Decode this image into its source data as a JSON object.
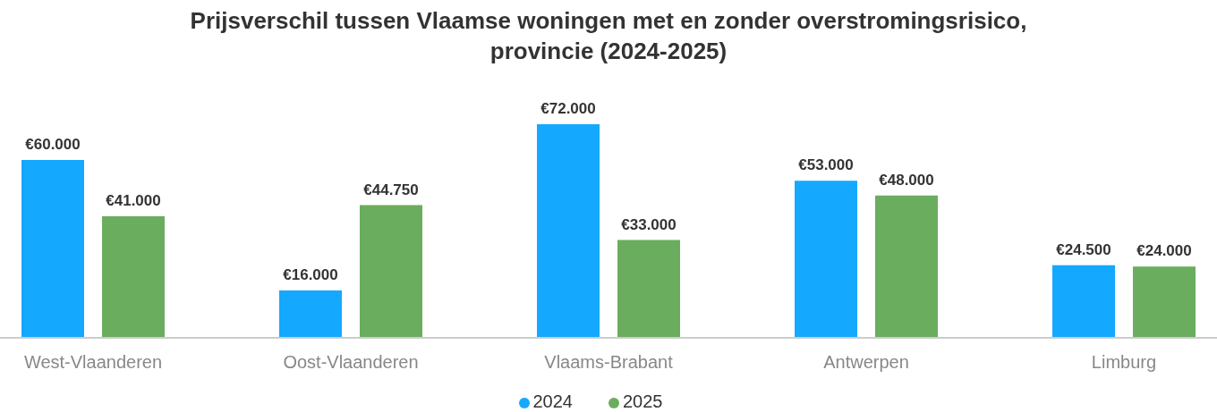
{
  "chart_data": {
    "type": "bar",
    "title": "Prijsverschil tussen Vlaamse woningen met en zonder overstromingsrisico, provincie (2024-2025)",
    "categories": [
      "West-Vlaanderen",
      "Oost-Vlaanderen",
      "Vlaams-Brabant",
      "Antwerpen",
      "Limburg"
    ],
    "series": [
      {
        "name": "2024",
        "color": "#14a9fe",
        "values": [
          60000,
          16000,
          72000,
          53000,
          24500
        ],
        "value_labels": [
          "€60.000",
          "€16.000",
          "€72.000",
          "€53.000",
          "€24.500"
        ]
      },
      {
        "name": "2025",
        "color": "#6aad5e",
        "values": [
          41000,
          44750,
          33000,
          48000,
          24000
        ],
        "value_labels": [
          "€41.000",
          "€44.750",
          "€33.000",
          "€48.000",
          "€24.000"
        ]
      }
    ],
    "legend": "bottom",
    "grid": false
  }
}
